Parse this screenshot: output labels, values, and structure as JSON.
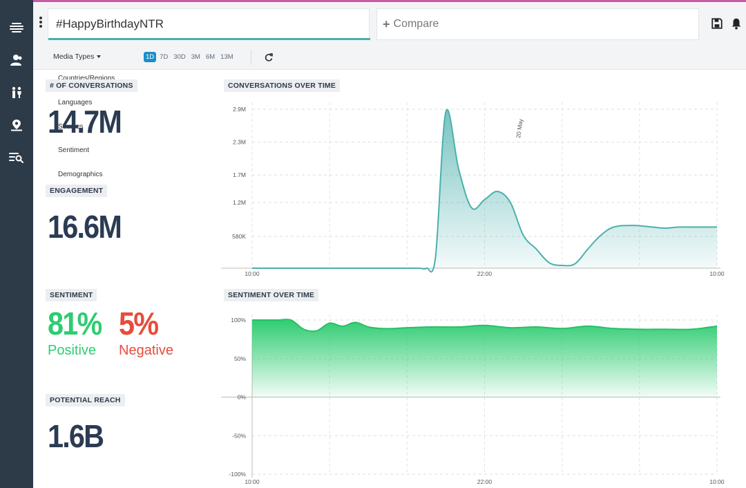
{
  "header": {
    "search_value": "#HappyBirthdayNTR",
    "compare_label": "Compare"
  },
  "toolbar": {
    "media_types_label": "Media Types",
    "ranges": [
      "1D",
      "7D",
      "30D",
      "3M",
      "6M",
      "13M"
    ],
    "active_range": "1D"
  },
  "dropdown": {
    "items": [
      "Countries/Regions",
      "Languages",
      "Sources",
      "Sentiment",
      "Demographics"
    ]
  },
  "metrics": {
    "conversations_label": "# OF CONVERSATIONS",
    "conversations_value": "14.7M",
    "engagement_label": "ENGAGEMENT",
    "engagement_value": "16.6M",
    "sentiment_label": "SENTIMENT",
    "positive_value": "81%",
    "positive_label": "Positive",
    "negative_value": "5%",
    "negative_label": "Negative",
    "reach_label": "POTENTIAL REACH",
    "reach_value": "1.6B"
  },
  "colors": {
    "positive": "#2ecc71",
    "negative": "#e74c3c",
    "conversations_line": "#4ab0ad",
    "sentiment_line": "#2ecc71"
  },
  "chart_data": [
    {
      "type": "area",
      "title": "CONVERSATIONS OVER TIME",
      "annotation": "20 May",
      "x_ticks": [
        "10:00",
        "22:00",
        "10:00"
      ],
      "y_ticks": [
        "580K",
        "1.2M",
        "1.7M",
        "2.3M",
        "2.9M"
      ],
      "ylim": [
        0,
        2.9
      ],
      "x": [
        0,
        5,
        10,
        11.5,
        12.5,
        13,
        13.5,
        14.2,
        15,
        16,
        17,
        18,
        19,
        20,
        21,
        22,
        23,
        24,
        25,
        26,
        27,
        28,
        29.5,
        31,
        32,
        33,
        34,
        35,
        36
      ],
      "values_millions": [
        0,
        0,
        0,
        0,
        0,
        0,
        0,
        0.2,
        2.85,
        1.8,
        1.1,
        1.25,
        1.4,
        1.2,
        0.6,
        0.35,
        0.1,
        0.05,
        0.08,
        0.35,
        0.6,
        0.75,
        0.78,
        0.75,
        0.73,
        0.75,
        0.75,
        0.75,
        0.75
      ],
      "grid": true
    },
    {
      "type": "area",
      "title": "SENTIMENT OVER TIME",
      "x_ticks": [
        "10:00",
        "22:00",
        "10:00"
      ],
      "y_ticks": [
        "100%",
        "50%",
        "0%",
        "-50%",
        "-100%"
      ],
      "ylim": [
        -100,
        100
      ],
      "x": [
        0,
        1,
        2,
        3,
        4,
        5,
        6,
        7,
        8,
        9,
        10,
        11,
        12,
        14,
        16,
        18,
        20,
        22,
        24,
        26,
        28,
        30,
        32,
        34,
        36
      ],
      "values": [
        100,
        100,
        100,
        100,
        88,
        86,
        96,
        92,
        97,
        91,
        89,
        89,
        90,
        91,
        91,
        93,
        90,
        91,
        89,
        92,
        89,
        88,
        88,
        88,
        92
      ],
      "grid": true
    }
  ]
}
